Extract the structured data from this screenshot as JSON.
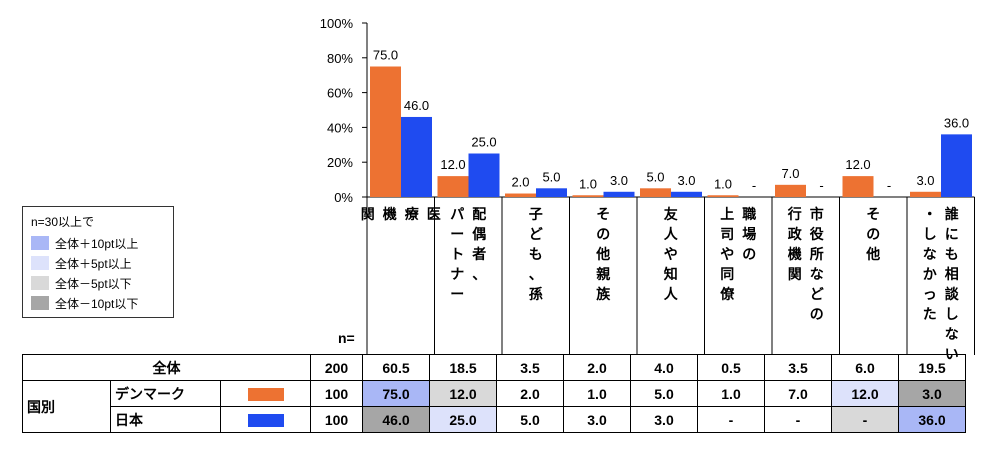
{
  "chart_data": {
    "type": "bar",
    "yticks": [
      "100%",
      "80%",
      "60%",
      "40%",
      "20%",
      "0%"
    ],
    "ylim": [
      0,
      100
    ],
    "categories": [
      {
        "lines": [
          "医",
          "療",
          "機",
          "関"
        ]
      },
      {
        "lines": [
          "配偶者、",
          "パートナー"
        ]
      },
      {
        "lines": [
          "子ども、孫"
        ]
      },
      {
        "lines": [
          "その他親族"
        ]
      },
      {
        "lines": [
          "友人や知人"
        ]
      },
      {
        "lines": [
          "職場の",
          "上司や同僚"
        ]
      },
      {
        "lines": [
          "市役所などの",
          "行政機関"
        ]
      },
      {
        "lines": [
          "その他"
        ]
      },
      {
        "lines": [
          "誰にも相談しない",
          "・しなかった"
        ]
      }
    ],
    "series": [
      {
        "name": "デンマーク",
        "color": "#ED7232",
        "values": [
          75.0,
          12.0,
          2.0,
          1.0,
          5.0,
          1.0,
          7.0,
          12.0,
          3.0
        ],
        "labels": [
          "75.0",
          "12.0",
          "2.0",
          "1.0",
          "5.0",
          "1.0",
          "7.0",
          "12.0",
          "3.0"
        ]
      },
      {
        "name": "日本",
        "color": "#1F4BF0",
        "values": [
          46.0,
          25.0,
          5.0,
          3.0,
          3.0,
          0,
          0,
          0,
          36.0
        ],
        "labels": [
          "46.0",
          "25.0",
          "5.0",
          "3.0",
          "3.0",
          "-",
          "-",
          "-",
          "36.0"
        ]
      }
    ]
  },
  "legend": {
    "title": "n=30以上で",
    "items": [
      {
        "label": "全体＋10pt以上",
        "color": "#A9B7F6"
      },
      {
        "label": "全体＋5pt以上",
        "color": "#DDE2FB"
      },
      {
        "label": "全体－5pt以下",
        "color": "#D9D9D9"
      },
      {
        "label": "全体－10pt以下",
        "color": "#A6A6A6"
      }
    ]
  },
  "n_label": "n=",
  "table": {
    "total_label": "全体",
    "group_label": "国別",
    "total_row": {
      "n": "200",
      "values": [
        "60.5",
        "18.5",
        "3.5",
        "2.0",
        "4.0",
        "0.5",
        "3.5",
        "6.0",
        "19.5"
      ]
    },
    "rows": [
      {
        "name": "デンマーク",
        "n": "100",
        "values": [
          "75.0",
          "12.0",
          "2.0",
          "1.0",
          "5.0",
          "1.0",
          "7.0",
          "12.0",
          "3.0"
        ],
        "shades": [
          "#A9B7F6",
          "#D9D9D9",
          "",
          "",
          "",
          "",
          "",
          "#DDE2FB",
          "#A6A6A6"
        ]
      },
      {
        "name": "日本",
        "n": "100",
        "values": [
          "46.0",
          "25.0",
          "5.0",
          "3.0",
          "3.0",
          "-",
          "-",
          "-",
          "36.0"
        ],
        "shades": [
          "#A6A6A6",
          "#DDE2FB",
          "",
          "",
          "",
          "",
          "",
          "#D9D9D9",
          "#A9B7F6"
        ]
      }
    ]
  }
}
